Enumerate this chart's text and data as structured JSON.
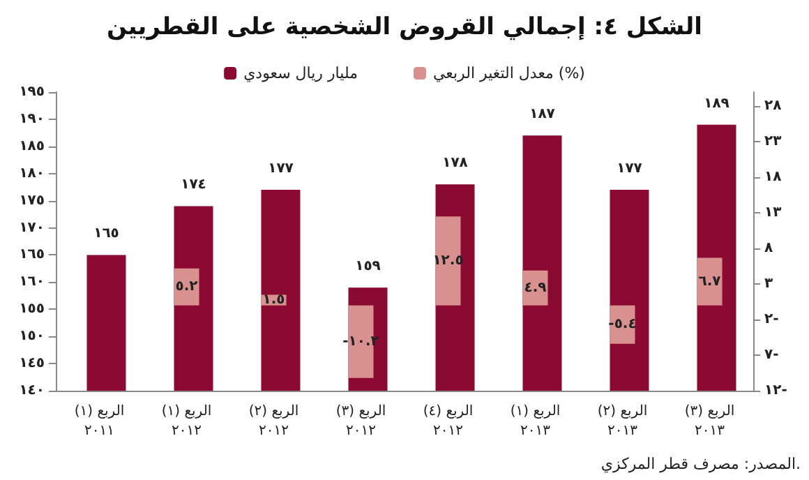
{
  "chart_data": {
    "type": "bar",
    "title": "الشكل ٤: إجمالي القروض الشخصية على القطريين",
    "categories": [
      "الربع (١)\n٢٠١١",
      "الربع (١)\n٢٠١٢",
      "الربع (٢)\n٢٠١٢",
      "الربع (٣)\n٢٠١٢",
      "الربع (٤)\n٢٠١٢",
      "الربع (١)\n٢٠١٣",
      "الربع (٢)\n٢٠١٣",
      "الربع (٣)\n٢٠١٣"
    ],
    "series": [
      {
        "name": "مليار ريال سعودي",
        "color": "#8b0a32",
        "values": [
          165,
          174,
          177,
          159,
          178,
          187,
          177,
          189
        ],
        "value_labels": [
          "١٦٥",
          "١٧٤",
          "١٧٧",
          "١٥٩",
          "١٧٨",
          "١٨٧",
          "١٧٧",
          "١٨٩"
        ]
      },
      {
        "name": "معدل التغير الربعي (%)",
        "color": "#d9918f",
        "axis": "y2",
        "values": [
          null,
          5.2,
          1.5,
          -10.2,
          12.5,
          4.9,
          -5.4,
          6.7
        ],
        "value_labels": [
          null,
          "٥.٢",
          "١.٥",
          "-١٠.٢",
          "١٢.٥",
          "٤.٩",
          "-٥.٤",
          "٦.٧"
        ]
      }
    ],
    "ylim": [
      140,
      195
    ],
    "yticks": [
      {
        "value": 140,
        "label": "١٤٠"
      },
      {
        "value": 145,
        "label": "١٤٥"
      },
      {
        "value": 150,
        "label": "١٥٠"
      },
      {
        "value": 155,
        "label": "١٥٥"
      },
      {
        "value": 160,
        "label": "١٦٠"
      },
      {
        "value": 165,
        "label": "١٦٥"
      },
      {
        "value": 170,
        "label": "١٧٠"
      },
      {
        "value": 175,
        "label": "١٧٥"
      },
      {
        "value": 180,
        "label": "١٨٠"
      },
      {
        "value": 185,
        "label": "١٨٥"
      },
      {
        "value": 190,
        "label": "١٩٠"
      },
      {
        "value": 195,
        "label": "١٩٥"
      }
    ],
    "y2lim": [
      -12,
      30
    ],
    "y2ticks": [
      {
        "value": -12,
        "label": "١٢-"
      },
      {
        "value": -7,
        "label": "٧-"
      },
      {
        "value": -2,
        "label": "٢-"
      },
      {
        "value": 3,
        "label": "٣"
      },
      {
        "value": 8,
        "label": "٨"
      },
      {
        "value": 13,
        "label": "١٣"
      },
      {
        "value": 18,
        "label": "١٨"
      },
      {
        "value": 23,
        "label": "٢٣"
      },
      {
        "value": 28,
        "label": "٢٨"
      }
    ],
    "legend": "top",
    "grid": false,
    "annotations": [
      "المصدر: مصرف قطر المركزي."
    ]
  }
}
